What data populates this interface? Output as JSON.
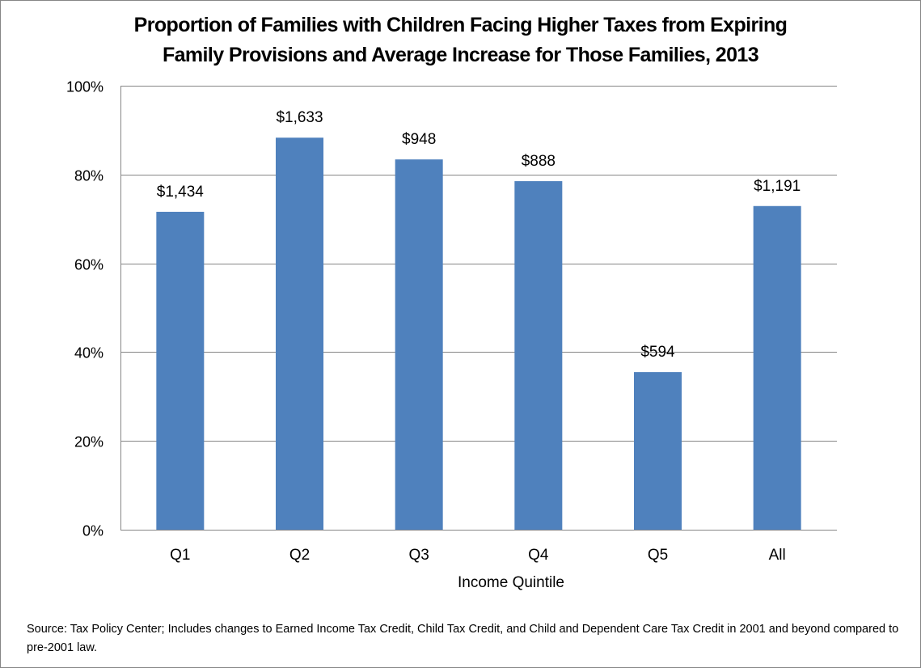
{
  "chart_data": {
    "type": "bar",
    "title_lines": [
      "Proportion of Families with Children Facing Higher Taxes from Expiring",
      "Family Provisions and Average Increase for Those Families, 2013"
    ],
    "xlabel": "Income Quintile",
    "ylabel": "",
    "categories": [
      "Q1",
      "Q2",
      "Q3",
      "Q4",
      "Q5",
      "All"
    ],
    "values": [
      71.6,
      88.3,
      83.4,
      78.5,
      35.5,
      72.9
    ],
    "value_unit": "percent of families",
    "data_labels": [
      "$1,434",
      "$1,633",
      "$948",
      "$888",
      "$594",
      "$1,191"
    ],
    "ylim": [
      0,
      100
    ],
    "yticks": [
      0,
      20,
      40,
      60,
      80,
      100
    ],
    "ytick_labels": [
      "0%",
      "20%",
      "40%",
      "60%",
      "80%",
      "100%"
    ],
    "grid": true,
    "legend": "none",
    "bar_color": "#4f81bd",
    "grid_color": "#868686"
  },
  "source_note": "Source: Tax Policy Center; Includes  changes to Earned Income Tax Credit, Child Tax Credit, and Child and Dependent  Care Tax Credit in 2001 and beyond compared to pre-2001 law."
}
